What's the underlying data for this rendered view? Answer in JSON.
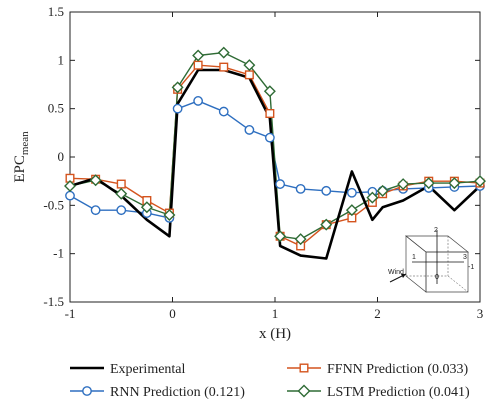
{
  "chart_data": {
    "type": "line",
    "xlabel": "x (H)",
    "ylabel_main": "EPC",
    "ylabel_sub": "mean",
    "xlim": [
      -1,
      3
    ],
    "ylim": [
      -1.5,
      1.5
    ],
    "xticks": [
      -1,
      0,
      1,
      2,
      3
    ],
    "yticks": [
      -1.5,
      -1,
      -0.5,
      0,
      0.5,
      1,
      1.5
    ],
    "grid": false,
    "legend_position": "bottom",
    "series": [
      {
        "name": "Experimental",
        "color": "#000000",
        "marker": "none",
        "x": [
          -1,
          -0.75,
          -0.5,
          -0.25,
          -0.03,
          0.05,
          0.25,
          0.5,
          0.75,
          0.95,
          1.05,
          1.25,
          1.5,
          1.75,
          1.95,
          2.05,
          2.25,
          2.5,
          2.75,
          3
        ],
        "y": [
          -0.3,
          -0.22,
          -0.4,
          -0.65,
          -0.82,
          0.55,
          0.9,
          0.9,
          0.82,
          0.4,
          -0.92,
          -1.02,
          -1.05,
          -0.15,
          -0.65,
          -0.52,
          -0.45,
          -0.3,
          -0.55,
          -0.3
        ]
      },
      {
        "name": "RNN Prediction (0.121)",
        "color": "#2e6fc0",
        "marker": "circle",
        "x": [
          -1,
          -0.75,
          -0.5,
          -0.25,
          -0.03,
          0.05,
          0.25,
          0.5,
          0.75,
          0.95,
          1.05,
          1.25,
          1.5,
          1.75,
          1.95,
          2.05,
          2.25,
          2.5,
          2.75,
          3
        ],
        "y": [
          -0.4,
          -0.55,
          -0.55,
          -0.58,
          -0.63,
          0.5,
          0.58,
          0.47,
          0.28,
          0.2,
          -0.28,
          -0.33,
          -0.35,
          -0.37,
          -0.36,
          -0.35,
          -0.33,
          -0.32,
          -0.31,
          -0.3
        ]
      },
      {
        "name": "FFNN Prediction (0.033)",
        "color": "#d4541e",
        "marker": "square",
        "x": [
          -1,
          -0.75,
          -0.5,
          -0.25,
          -0.03,
          0.05,
          0.25,
          0.5,
          0.75,
          0.95,
          1.05,
          1.25,
          1.5,
          1.75,
          1.95,
          2.05,
          2.25,
          2.5,
          2.75,
          3
        ],
        "y": [
          -0.22,
          -0.23,
          -0.28,
          -0.45,
          -0.58,
          0.7,
          0.95,
          0.93,
          0.85,
          0.45,
          -0.82,
          -0.92,
          -0.7,
          -0.63,
          -0.47,
          -0.38,
          -0.3,
          -0.25,
          -0.25,
          -0.27
        ]
      },
      {
        "name": "LSTM Prediction (0.041)",
        "color": "#2f6b35",
        "marker": "diamond",
        "x": [
          -1,
          -0.75,
          -0.5,
          -0.25,
          -0.03,
          0.05,
          0.25,
          0.5,
          0.75,
          0.95,
          1.05,
          1.25,
          1.5,
          1.75,
          1.95,
          2.05,
          2.25,
          2.5,
          2.75,
          3
        ],
        "y": [
          -0.3,
          -0.24,
          -0.38,
          -0.52,
          -0.6,
          0.72,
          1.05,
          1.08,
          0.95,
          0.68,
          -0.82,
          -0.85,
          -0.7,
          -0.55,
          -0.42,
          -0.35,
          -0.28,
          -0.27,
          -0.27,
          -0.25
        ]
      }
    ],
    "inset": {
      "wind_label": "Wind",
      "axis_labels": [
        "2",
        "1",
        "0",
        "3",
        "-1"
      ]
    }
  }
}
